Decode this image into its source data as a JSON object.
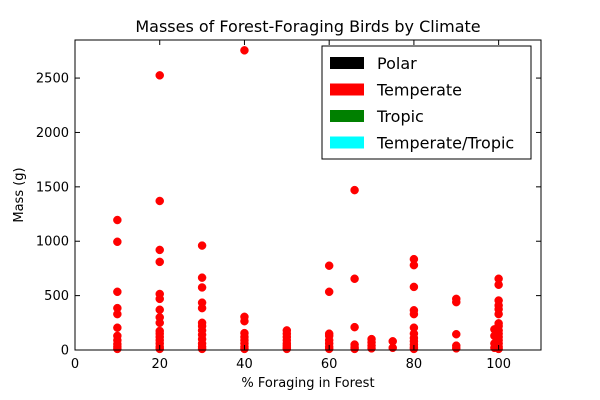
{
  "chart_data": {
    "type": "scatter",
    "title": "Masses of Forest-Foraging Birds by Climate",
    "xlabel": "% Foraging in Forest",
    "ylabel": "Mass (g)",
    "xlim": [
      0,
      110
    ],
    "ylim": [
      0,
      2850
    ],
    "xticks": [
      0,
      20,
      40,
      60,
      80,
      100
    ],
    "yticks": [
      0,
      500,
      1000,
      1500,
      2000,
      2500
    ],
    "grid": false,
    "legend_placement": "top-right",
    "series": [
      {
        "name": "Polar",
        "color": "#000000",
        "points": []
      },
      {
        "name": "Temperate",
        "color": "#ff0000",
        "points": [
          [
            10,
            1195
          ],
          [
            10,
            995
          ],
          [
            10,
            535
          ],
          [
            10,
            385
          ],
          [
            10,
            330
          ],
          [
            10,
            205
          ],
          [
            10,
            130
          ],
          [
            10,
            90
          ],
          [
            10,
            55
          ],
          [
            10,
            30
          ],
          [
            10,
            10
          ],
          [
            20,
            2525
          ],
          [
            20,
            1370
          ],
          [
            20,
            920
          ],
          [
            20,
            810
          ],
          [
            20,
            515
          ],
          [
            20,
            470
          ],
          [
            20,
            370
          ],
          [
            20,
            300
          ],
          [
            20,
            250
          ],
          [
            20,
            175
          ],
          [
            20,
            150
          ],
          [
            20,
            120
          ],
          [
            20,
            90
          ],
          [
            20,
            60
          ],
          [
            20,
            30
          ],
          [
            20,
            10
          ],
          [
            30,
            960
          ],
          [
            30,
            665
          ],
          [
            30,
            575
          ],
          [
            30,
            435
          ],
          [
            30,
            385
          ],
          [
            30,
            250
          ],
          [
            30,
            220
          ],
          [
            30,
            180
          ],
          [
            30,
            140
          ],
          [
            30,
            100
          ],
          [
            30,
            60
          ],
          [
            30,
            30
          ],
          [
            30,
            10
          ],
          [
            40,
            2755
          ],
          [
            40,
            305
          ],
          [
            40,
            265
          ],
          [
            40,
            155
          ],
          [
            40,
            120
          ],
          [
            40,
            90
          ],
          [
            40,
            60
          ],
          [
            40,
            30
          ],
          [
            40,
            10
          ],
          [
            50,
            180
          ],
          [
            50,
            150
          ],
          [
            50,
            120
          ],
          [
            50,
            90
          ],
          [
            50,
            60
          ],
          [
            50,
            40
          ],
          [
            50,
            20
          ],
          [
            50,
            10
          ],
          [
            60,
            775
          ],
          [
            60,
            535
          ],
          [
            60,
            150
          ],
          [
            60,
            130
          ],
          [
            60,
            90
          ],
          [
            60,
            60
          ],
          [
            60,
            30
          ],
          [
            60,
            10
          ],
          [
            66,
            1470
          ],
          [
            66,
            655
          ],
          [
            66,
            210
          ],
          [
            66,
            50
          ],
          [
            66,
            25
          ],
          [
            66,
            10
          ],
          [
            70,
            100
          ],
          [
            70,
            70
          ],
          [
            70,
            40
          ],
          [
            70,
            15
          ],
          [
            75,
            80
          ],
          [
            75,
            20
          ],
          [
            80,
            835
          ],
          [
            80,
            780
          ],
          [
            80,
            580
          ],
          [
            80,
            365
          ],
          [
            80,
            330
          ],
          [
            80,
            205
          ],
          [
            80,
            150
          ],
          [
            80,
            110
          ],
          [
            80,
            80
          ],
          [
            80,
            50
          ],
          [
            80,
            25
          ],
          [
            80,
            10
          ],
          [
            90,
            470
          ],
          [
            90,
            440
          ],
          [
            90,
            145
          ],
          [
            90,
            40
          ],
          [
            90,
            15
          ],
          [
            99,
            190
          ],
          [
            99,
            130
          ],
          [
            99,
            60
          ],
          [
            99,
            20
          ],
          [
            100,
            655
          ],
          [
            100,
            600
          ],
          [
            100,
            455
          ],
          [
            100,
            410
          ],
          [
            100,
            375
          ],
          [
            100,
            330
          ],
          [
            100,
            245
          ],
          [
            100,
            220
          ],
          [
            100,
            180
          ],
          [
            100,
            150
          ],
          [
            100,
            120
          ],
          [
            100,
            90
          ],
          [
            100,
            60
          ],
          [
            100,
            30
          ],
          [
            100,
            10
          ]
        ]
      },
      {
        "name": "Tropic",
        "color": "#008000",
        "points": []
      },
      {
        "name": "Temperate/Tropic",
        "color": "#00ffff",
        "points": []
      }
    ]
  }
}
